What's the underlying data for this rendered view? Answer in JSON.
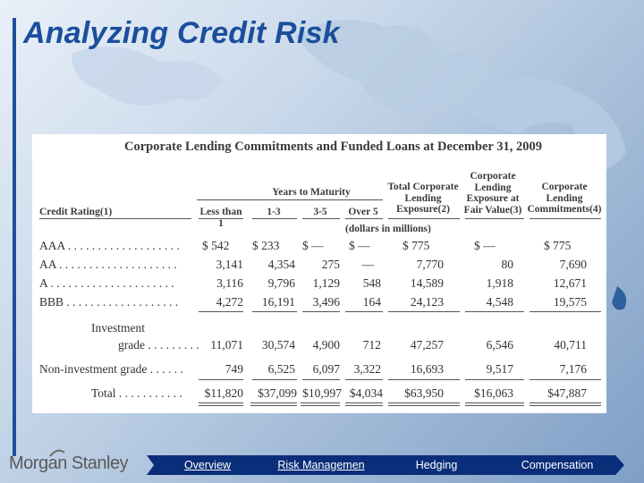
{
  "slide": {
    "title": "Analyzing Credit Risk"
  },
  "document": {
    "title": "Corporate Lending Commitments and Funded Loans at December 31, 2009",
    "headers": {
      "credit_rating": "Credit Rating(1)",
      "years_to_maturity": "Years to Maturity",
      "less_than_1": "Less than 1",
      "one_three": "1-3",
      "three_five": "3-5",
      "over_5": "Over 5",
      "total_exposure": [
        "Total Corporate",
        "Lending",
        "Exposure(2)"
      ],
      "fair_value": [
        "Corporate",
        "Lending",
        "Exposure at",
        "Fair Value(3)"
      ],
      "commitments": [
        "Corporate",
        "Lending",
        "Commitments(4)"
      ],
      "units": "(dollars in millions)"
    },
    "rows": [
      {
        "label": "AAA . . . . . . . . . . . . . . . . . . .",
        "values": [
          "$    542",
          "$    233",
          "$    —",
          "$   —",
          "$    775",
          "$    —",
          "$    775"
        ]
      },
      {
        "label": "AA . . . . . . . . . . . . . . . . . . . .",
        "values": [
          "3,141",
          "4,354",
          "275",
          "—",
          "7,770",
          "80",
          "7,690"
        ]
      },
      {
        "label": "A . . . . . . . . . . . . . . . . . . . . .",
        "values": [
          "3,116",
          "9,796",
          "1,129",
          "548",
          "14,589",
          "1,918",
          "12,671"
        ]
      },
      {
        "label": "BBB . . . . . . . . . . . . . . . . . . .",
        "values": [
          "4,272",
          "16,191",
          "3,496",
          "164",
          "24,123",
          "4,548",
          "19,575"
        ]
      }
    ],
    "investment_grade": {
      "label_line1": "Investment",
      "label_line2": "grade . . . . . . . . .",
      "values": [
        "11,071",
        "30,574",
        "4,900",
        "712",
        "47,257",
        "6,546",
        "40,711"
      ]
    },
    "non_investment_grade": {
      "label": "Non-investment grade . . . . . .",
      "values": [
        "749",
        "6,525",
        "6,097",
        "3,322",
        "16,693",
        "9,517",
        "7,176"
      ]
    },
    "total": {
      "label": "Total  . . . . . . . . . . .",
      "values": [
        "$11,820",
        "$37,099",
        "$10,997",
        "$4,034",
        "$63,950",
        "$16,063",
        "$47,887"
      ]
    }
  },
  "footer": {
    "logo_text": "Morgan Stanley",
    "nav": [
      "Overview",
      "Risk Managemen",
      "Hedging",
      "Compensation"
    ]
  },
  "colors": {
    "title": "#1b4f9c",
    "nav_bg": "#0b2e7a"
  }
}
